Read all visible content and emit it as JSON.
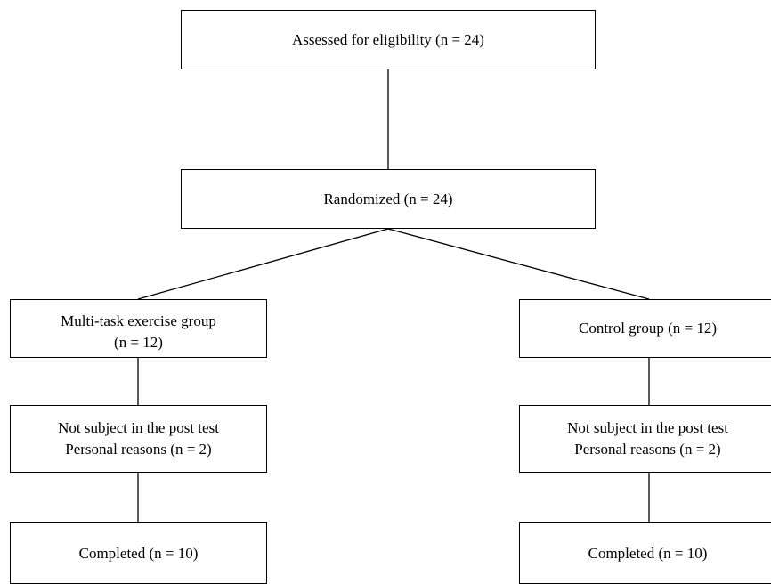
{
  "diagram": {
    "assessed": "Assessed for eligibility (n = 24)",
    "randomized": "Randomized (n = 24)",
    "left_arm": {
      "group_line1": "Multi-task exercise group",
      "group_line2": "(n = 12)",
      "excluded_line1": "Not subject in the post test",
      "excluded_line2": "Personal reasons (n = 2)",
      "completed": "Completed (n = 10)"
    },
    "right_arm": {
      "group": "Control group (n = 12)",
      "excluded_line1": "Not subject in the post test",
      "excluded_line2": "Personal reasons (n = 2)",
      "completed": "Completed (n = 10)"
    }
  }
}
